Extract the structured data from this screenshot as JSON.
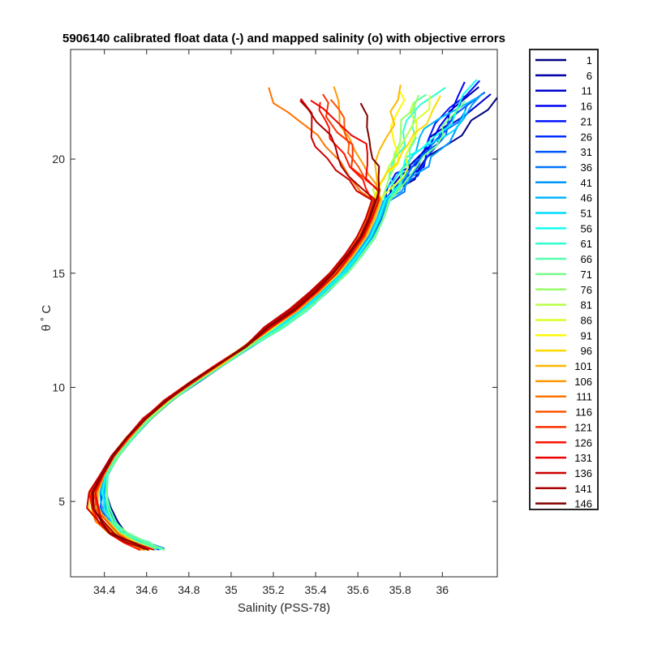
{
  "chart_data": {
    "type": "line",
    "title": "5906140 calibrated float data (-) and mapped salinity (o) with objective errors",
    "xlabel": "Salinity (PSS-78)",
    "ylabel": "θ ˚ C",
    "xlim": [
      34.24,
      36.26
    ],
    "ylim": [
      1.7,
      24.8
    ],
    "xticks": [
      "34.4",
      "34.6",
      "34.8",
      "35",
      "35.2",
      "35.4",
      "35.6",
      "35.8",
      "36"
    ],
    "yticks": [
      "5",
      "10",
      "15",
      "20"
    ],
    "grid": false,
    "legend_position": "outside-right",
    "colormap": "jet",
    "profiles_reference_line": {
      "salinity": [
        34.63,
        34.55,
        34.46,
        34.41,
        34.38,
        34.37,
        34.4,
        34.45,
        34.52,
        34.6,
        34.7,
        34.82,
        34.95,
        35.08,
        35.2,
        35.32,
        35.42,
        35.51,
        35.58,
        35.64,
        35.68,
        35.71
      ],
      "theta": [
        2.9,
        3.2,
        3.6,
        4.1,
        4.7,
        5.4,
        6.2,
        7.0,
        7.8,
        8.6,
        9.4,
        10.2,
        11.0,
        11.8,
        12.6,
        13.4,
        14.2,
        15.0,
        15.8,
        16.6,
        17.4,
        18.2
      ]
    },
    "legend": [
      "1",
      "6",
      "11",
      "16",
      "21",
      "26",
      "31",
      "36",
      "41",
      "46",
      "51",
      "56",
      "61",
      "66",
      "71",
      "76",
      "81",
      "86",
      "91",
      "96",
      "101",
      "106",
      "111",
      "116",
      "121",
      "126",
      "131",
      "136",
      "141",
      "146"
    ],
    "series_colors": [
      "#000080",
      "#0000a8",
      "#0000d0",
      "#0000f4",
      "#0010ff",
      "#0030ff",
      "#0054ff",
      "#0074ff",
      "#0098ff",
      "#00b8ff",
      "#00dcff",
      "#10fff0",
      "#30ffcf",
      "#54ffab",
      "#74ff8a",
      "#98ff67",
      "#b8ff46",
      "#dcff22",
      "#fcfa02",
      "#ffda00",
      "#ffb800",
      "#ff9800",
      "#ff7400",
      "#ff5400",
      "#ff3000",
      "#ff1000",
      "#ee0000",
      "#cc0000",
      "#aa0000",
      "#800000"
    ]
  }
}
